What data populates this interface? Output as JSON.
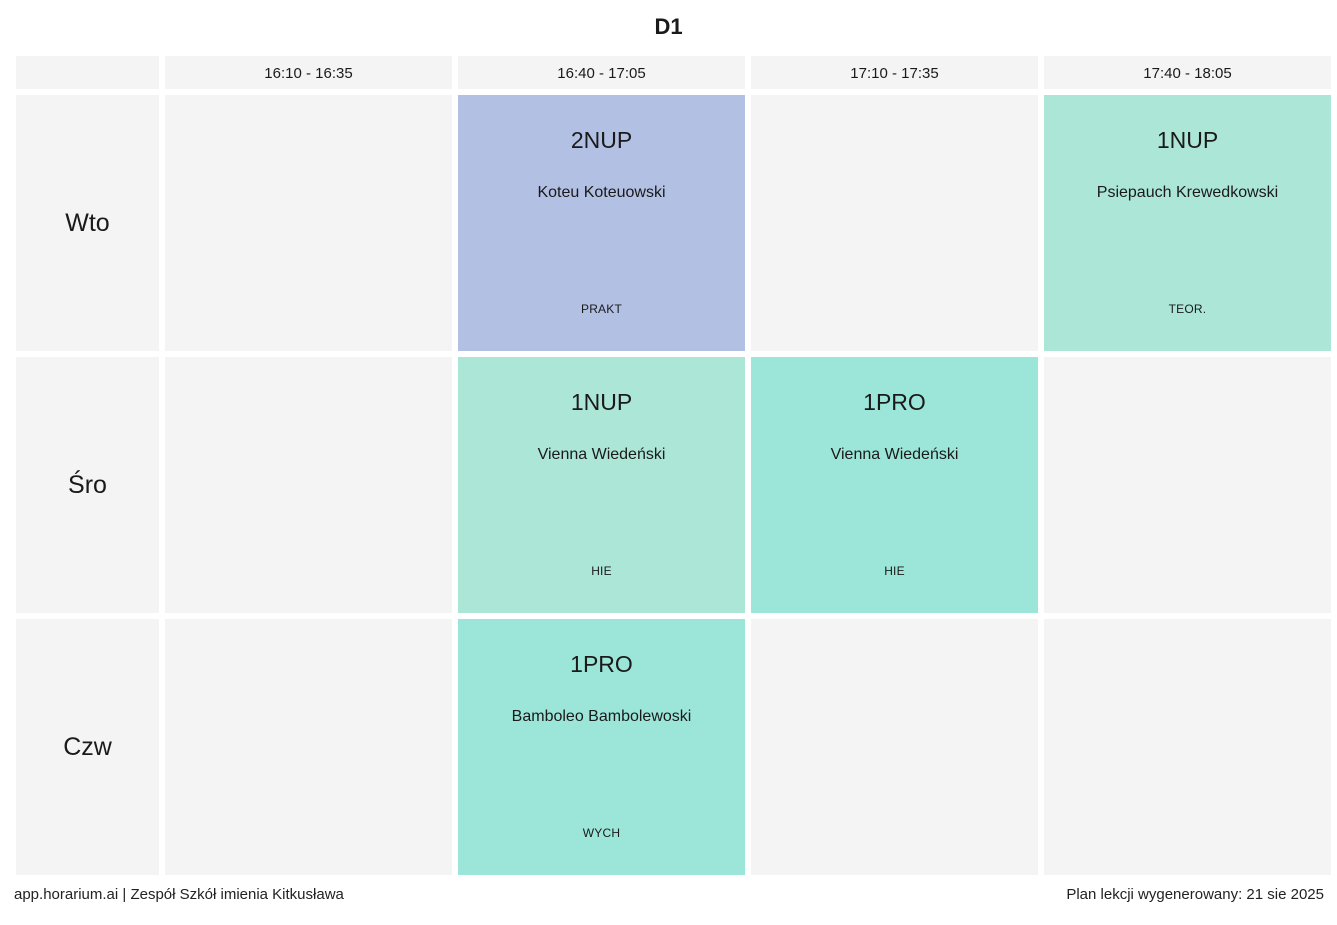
{
  "title": "D1",
  "time_slots": [
    "16:10 - 16:35",
    "16:40 - 17:05",
    "17:10 - 17:35",
    "17:40 - 18:05"
  ],
  "days": [
    {
      "label": "Wto",
      "lessons": [
        null,
        {
          "group": "2NUP",
          "teacher": "Koteu Koteuowski",
          "subject": "PRAKT",
          "color": "#b2c0e4"
        },
        null,
        {
          "group": "1NUP",
          "teacher": "Psiepauch Krewedkowski",
          "subject": "TEOR.",
          "color": "#ace6d7"
        }
      ]
    },
    {
      "label": "Śro",
      "lessons": [
        null,
        {
          "group": "1NUP",
          "teacher": "Vienna Wiedeński",
          "subject": "HIE",
          "color": "#ace6d7"
        },
        {
          "group": "1PRO",
          "teacher": "Vienna Wiedeński",
          "subject": "HIE",
          "color": "#9ce6d9"
        },
        null
      ]
    },
    {
      "label": "Czw",
      "lessons": [
        null,
        {
          "group": "1PRO",
          "teacher": "Bamboleo Bambolewoski",
          "subject": "WYCH",
          "color": "#9ce6d9"
        },
        null,
        null
      ]
    }
  ],
  "footer": {
    "left": "app.horarium.ai | Zespół Szkół imienia Kitkusława",
    "right": "Plan lekcji wygenerowany: 21 sie 2025"
  },
  "colors": {
    "empty_cell": "#f4f4f4"
  }
}
